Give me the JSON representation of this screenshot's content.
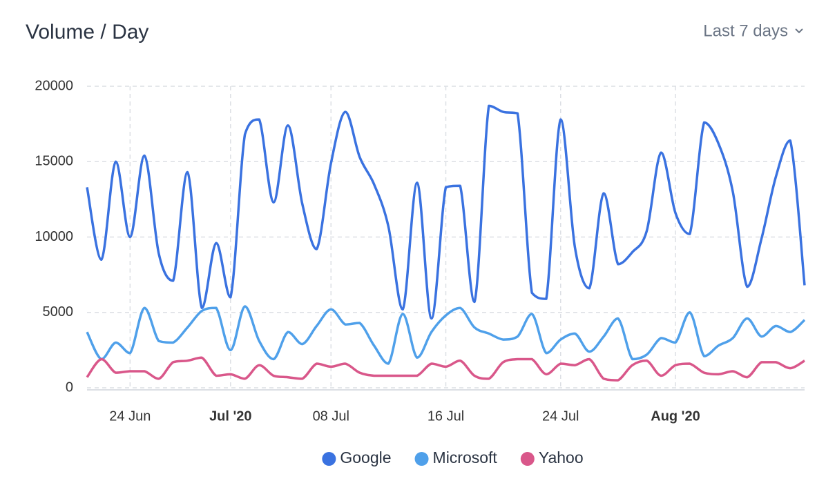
{
  "chart_data": {
    "type": "line",
    "title": "Volume / Day",
    "range_selector": "Last 7 days",
    "x": [
      "2020-06-21",
      "2020-06-22",
      "2020-06-23",
      "2020-06-24",
      "2020-06-25",
      "2020-06-26",
      "2020-06-27",
      "2020-06-28",
      "2020-06-29",
      "2020-06-30",
      "2020-07-01",
      "2020-07-02",
      "2020-07-03",
      "2020-07-04",
      "2020-07-05",
      "2020-07-06",
      "2020-07-07",
      "2020-07-08",
      "2020-07-09",
      "2020-07-10",
      "2020-07-11",
      "2020-07-12",
      "2020-07-13",
      "2020-07-14",
      "2020-07-15",
      "2020-07-16",
      "2020-07-17",
      "2020-07-18",
      "2020-07-19",
      "2020-07-20",
      "2020-07-21",
      "2020-07-22",
      "2020-07-23",
      "2020-07-24",
      "2020-07-25",
      "2020-07-26",
      "2020-07-27",
      "2020-07-28",
      "2020-07-29",
      "2020-07-30",
      "2020-07-31",
      "2020-08-01",
      "2020-08-02",
      "2020-08-03",
      "2020-08-04",
      "2020-08-05",
      "2020-08-06",
      "2020-08-07",
      "2020-08-08",
      "2020-08-09",
      "2020-08-10"
    ],
    "series": [
      {
        "name": "Google",
        "color": "#3a72e0",
        "values": [
          13300,
          8500,
          15000,
          10000,
          15400,
          8900,
          7100,
          14300,
          5300,
          9600,
          6000,
          16800,
          17800,
          12300,
          17400,
          12200,
          9200,
          14900,
          18300,
          15300,
          13500,
          10700,
          5200,
          13600,
          4600,
          13300,
          13400,
          5700,
          18700,
          18300,
          18200,
          6300,
          5900,
          17800,
          9300,
          6600,
          12900,
          8200,
          9000,
          10400,
          15600,
          11600,
          10200,
          17600,
          16200,
          13000,
          6700,
          9900,
          14000,
          16400,
          6800
        ]
      },
      {
        "name": "Microsoft",
        "color": "#4fa0ea",
        "values": [
          3700,
          1900,
          3000,
          2300,
          5300,
          3100,
          3000,
          4000,
          5100,
          5300,
          2500,
          5400,
          3100,
          1900,
          3700,
          2900,
          4100,
          5200,
          4200,
          4300,
          2800,
          1600,
          4900,
          2000,
          3700,
          4800,
          5300,
          4000,
          3600,
          3200,
          3400,
          4900,
          2300,
          3200,
          3600,
          2400,
          3400,
          4600,
          1900,
          2200,
          3300,
          3000,
          5000,
          2100,
          2800,
          3300,
          4600,
          3400,
          4100,
          3700,
          4500
        ]
      },
      {
        "name": "Yahoo",
        "color": "#d9578a",
        "values": [
          700,
          1900,
          1000,
          1100,
          1100,
          600,
          1700,
          1800,
          2000,
          800,
          900,
          600,
          1500,
          800,
          700,
          600,
          1600,
          1400,
          1600,
          1000,
          800,
          800,
          800,
          800,
          1600,
          1400,
          1800,
          800,
          600,
          1700,
          1900,
          1900,
          900,
          1600,
          1500,
          1900,
          600,
          500,
          1500,
          1800,
          800,
          1500,
          1600,
          1000,
          900,
          1100,
          700,
          1700,
          1700,
          1300,
          1800
        ]
      }
    ],
    "xlim": [
      "2020-06-21",
      "2020-08-10"
    ],
    "xticks": [
      {
        "value": "2020-06-24",
        "label": "24 Jun"
      },
      {
        "value": "2020-07-01",
        "label": "Jul '20"
      },
      {
        "value": "2020-07-08",
        "label": "08 Jul"
      },
      {
        "value": "2020-07-16",
        "label": "16 Jul"
      },
      {
        "value": "2020-07-24",
        "label": "24 Jul"
      },
      {
        "value": "2020-08-01",
        "label": "Aug '20"
      }
    ],
    "ylim": [
      0,
      20000
    ],
    "yticks": [
      0,
      5000,
      10000,
      15000,
      20000
    ],
    "grid": true,
    "legend": "bottom"
  }
}
